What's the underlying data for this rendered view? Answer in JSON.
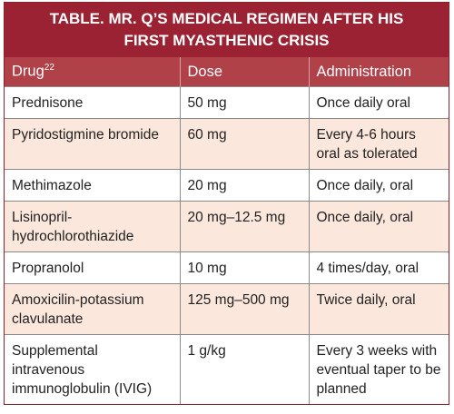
{
  "title": {
    "lines": [
      "TABLE. MR. Q’S MEDICAL REGIMEN AFTER HIS",
      "FIRST MYASTHENIC CRISIS"
    ]
  },
  "table": {
    "columns": [
      {
        "text": "Drug",
        "sup": "22"
      },
      {
        "text": "Dose"
      },
      {
        "text": "Administration"
      }
    ],
    "rows": [
      [
        "Prednisone",
        "50 mg",
        "Once daily oral"
      ],
      [
        "Pyridostigmine bromide",
        "60 mg",
        "Every 4-6 hours oral as tolerated"
      ],
      [
        "Methimazole",
        "20 mg",
        "Once daily, oral"
      ],
      [
        "Lisinopril-hydrochlorothiazide",
        "20 mg–12.5 mg",
        "Once daily, oral"
      ],
      [
        "Propranolol",
        "10 mg",
        "4 times/day, oral"
      ],
      [
        "Amoxicilin-potassium clavulanate",
        "125 mg–500 mg",
        "Twice daily, oral"
      ],
      [
        "Supplemental intravenous immunoglobulin (IVIG)",
        "1 g/kg",
        "Every 3 weeks with eventual taper to be planned"
      ]
    ]
  }
}
